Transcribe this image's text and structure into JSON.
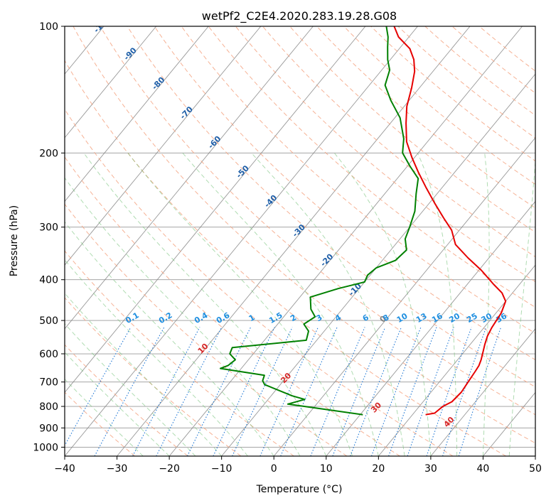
{
  "chart_data": {
    "type": "line",
    "subtype": "skew-T log-P diagram",
    "title": "wetPf2_C2E4.2020.283.19.28.G08",
    "xlabel": "Temperature (°C)",
    "ylabel": "Pressure (hPa)",
    "xlim": [
      -40,
      50
    ],
    "ylim": [
      1050,
      100
    ],
    "y_scale": "log",
    "x_ticks": [
      -40,
      -30,
      -20,
      -10,
      0,
      10,
      20,
      30,
      40,
      50
    ],
    "y_ticks": [
      100,
      200,
      300,
      400,
      500,
      600,
      700,
      800,
      900,
      1000
    ],
    "grid": true,
    "series": [
      {
        "role": "temperature",
        "color": "#e60000",
        "points": [
          [
            22.5,
            837
          ],
          [
            24.0,
            830
          ],
          [
            24.5,
            800
          ],
          [
            25.5,
            780
          ],
          [
            25.8,
            740
          ],
          [
            25.5,
            700
          ],
          [
            25.2,
            660
          ],
          [
            25.0,
            640
          ],
          [
            24.5,
            620
          ],
          [
            23.5,
            590
          ],
          [
            22.8,
            570
          ],
          [
            22.0,
            545
          ],
          [
            21.5,
            520
          ],
          [
            21.0,
            480
          ],
          [
            20.0,
            450
          ],
          [
            18.0,
            430
          ],
          [
            15.0,
            410
          ],
          [
            10.5,
            380
          ],
          [
            6.0,
            355
          ],
          [
            1.5,
            330
          ],
          [
            -1.5,
            305
          ],
          [
            -5.0,
            285
          ],
          [
            -9.0,
            263
          ],
          [
            -13.0,
            242
          ],
          [
            -17.0,
            222
          ],
          [
            -20.5,
            205
          ],
          [
            -24.0,
            188
          ],
          [
            -27.0,
            170
          ],
          [
            -29.5,
            155
          ],
          [
            -31.5,
            140
          ],
          [
            -33.5,
            128
          ],
          [
            -35.5,
            120
          ],
          [
            -38.0,
            113
          ],
          [
            -42.0,
            106
          ],
          [
            -44.5,
            100
          ]
        ]
      },
      {
        "role": "dewpoint",
        "color": "#008000",
        "points": [
          [
            10.5,
            837
          ],
          [
            -2.0,
            800
          ],
          [
            -5.5,
            790
          ],
          [
            -3.0,
            770
          ],
          [
            -6.0,
            755
          ],
          [
            -13.0,
            710
          ],
          [
            -14.0,
            695
          ],
          [
            -14.5,
            675
          ],
          [
            -24.0,
            650
          ],
          [
            -23.0,
            640
          ],
          [
            -22.5,
            620
          ],
          [
            -24.5,
            600
          ],
          [
            -25.0,
            580
          ],
          [
            -12.0,
            557
          ],
          [
            -13.0,
            530
          ],
          [
            -15.0,
            510
          ],
          [
            -14.0,
            490
          ],
          [
            -16.0,
            470
          ],
          [
            -18.0,
            440
          ],
          [
            -14.0,
            420
          ],
          [
            -10.0,
            405
          ],
          [
            -10.5,
            390
          ],
          [
            -10.0,
            375
          ],
          [
            -7.5,
            360
          ],
          [
            -7.0,
            340
          ],
          [
            -9.0,
            320
          ],
          [
            -10.0,
            300
          ],
          [
            -11.5,
            275
          ],
          [
            -14.0,
            250
          ],
          [
            -16.0,
            230
          ],
          [
            -19.5,
            215
          ],
          [
            -23.0,
            200
          ],
          [
            -25.0,
            185
          ],
          [
            -29.0,
            165
          ],
          [
            -33.5,
            150
          ],
          [
            -37.0,
            138
          ],
          [
            -38.5,
            127
          ],
          [
            -40.5,
            120
          ],
          [
            -42.5,
            112
          ],
          [
            -44.0,
            106
          ],
          [
            -46.0,
            100
          ]
        ]
      }
    ],
    "dry_adiabat_labels": [
      "-100",
      "-90",
      "-80",
      "-70",
      "-60",
      "-50",
      "-40",
      "-30",
      "-20",
      "-10",
      "0",
      "10",
      "20",
      "30",
      "40"
    ],
    "mixing_ratio_labels": [
      "0.1",
      "0.2",
      "0.4",
      "0.6",
      "1",
      "1.5",
      "2",
      "3",
      "4",
      "6",
      "8",
      "10",
      "13",
      "16",
      "20",
      "25",
      "30",
      "36"
    ],
    "colors": {
      "isotherm": "#808080",
      "isobar": "#808080",
      "dry_adiabat": "#f4a582",
      "moist_adiabat": "#6fbf73",
      "mixing_ratio": "#1f77d4",
      "dry_adiabat_label": "#1f5fa8",
      "dry_adiabat_label_neg": "#1f5fa8",
      "dry_adiabat_label_zero": "#808080",
      "dry_adiabat_label_pos": "#d62728",
      "mixing_ratio_label": "#1f8fe0"
    }
  }
}
